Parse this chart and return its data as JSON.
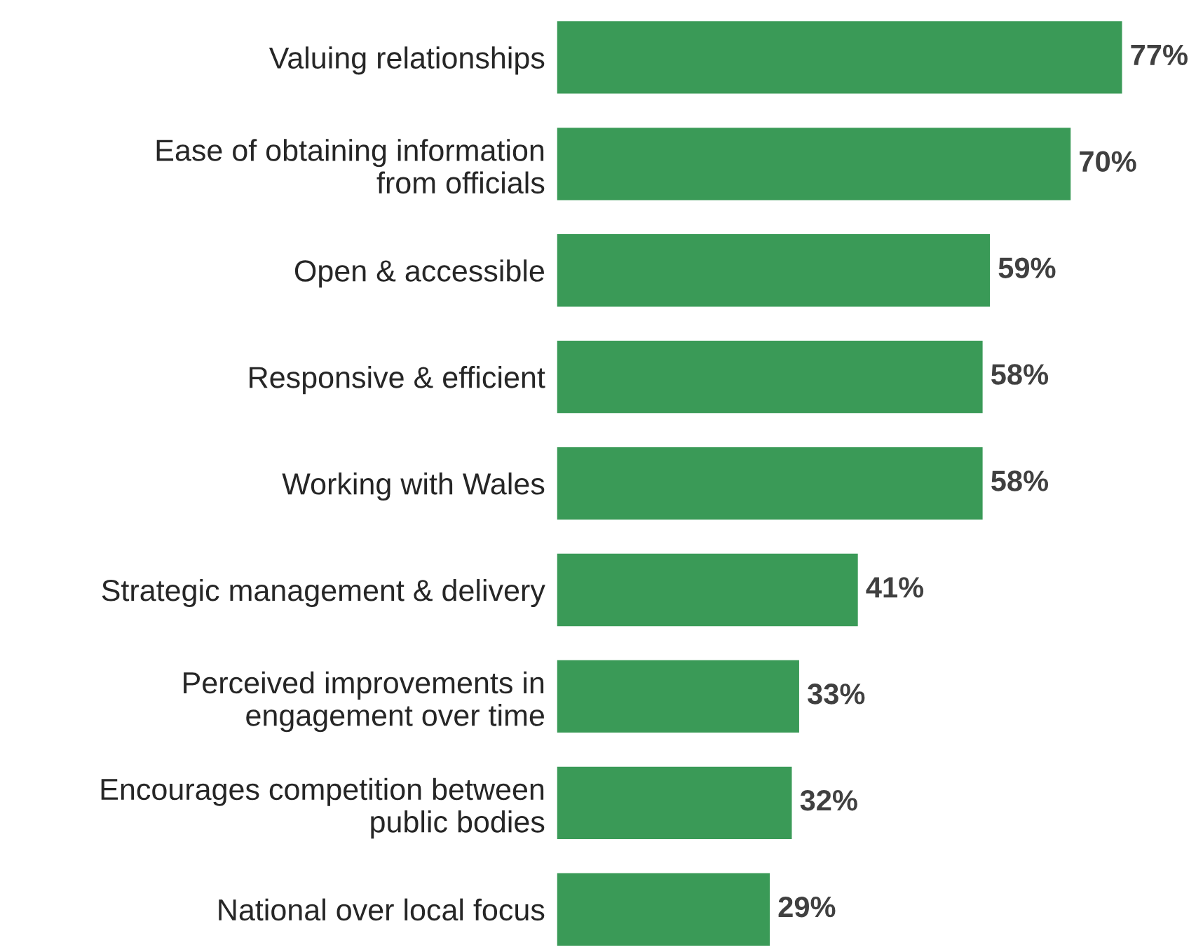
{
  "chart_data": {
    "type": "bar",
    "orientation": "horizontal",
    "relative": false,
    "categories": [
      "Valuing relationships",
      "Ease of obtaining information\nfrom officials",
      "Open & accessible",
      "Responsive & efficient",
      "Working with Wales",
      "Strategic management & delivery",
      "Perceived improvements in\nengagement over time",
      "Encourages competition between\npublic bodies",
      "National over local focus"
    ],
    "values": [
      77,
      70,
      59,
      58,
      58,
      41,
      33,
      32,
      29
    ],
    "value_labels": [
      "77%",
      "70%",
      "59%",
      "58%",
      "58%",
      "41%",
      "33%",
      "32%",
      "29%"
    ],
    "color": "#3a9a57",
    "grid": false,
    "legend": false
  }
}
